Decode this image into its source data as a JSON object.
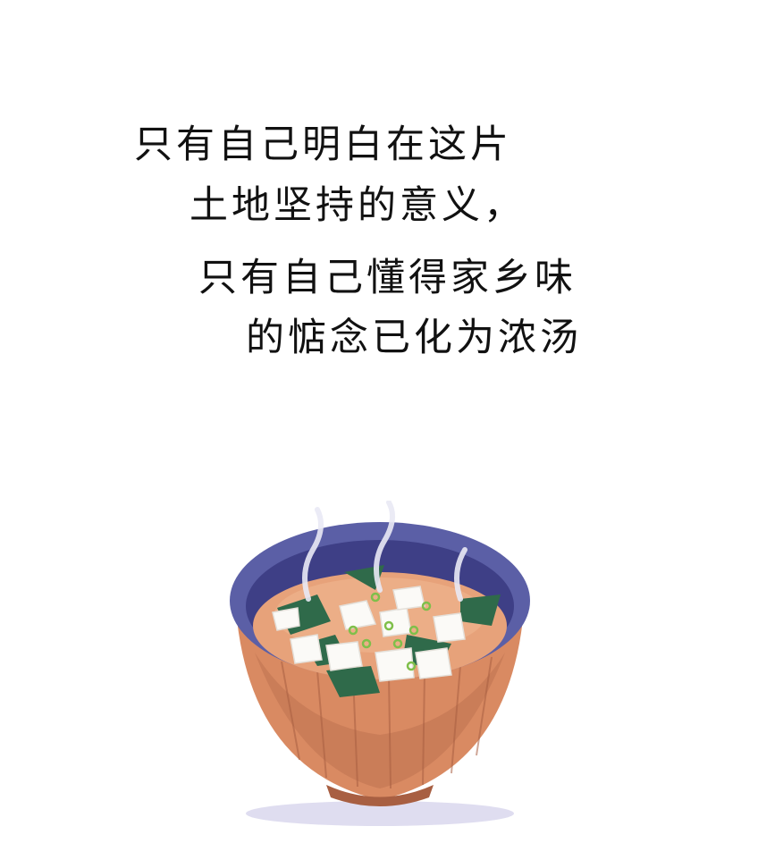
{
  "text": {
    "line1": "只有自己明白在这片",
    "line2": "土地坚持的意义，",
    "line3": "只有自己懂得家乡味",
    "line4": "的惦念已化为浓汤"
  },
  "illustration": {
    "subject": "miso-soup-bowl",
    "colors": {
      "rim": "#5b5fa6",
      "rim_inner": "#3e3f86",
      "broth": "#e7a27a",
      "bowl": "#d98a62",
      "bowl_shadow": "#b86d4e",
      "tofu": "#fbfaf7",
      "seaweed": "#2f6a4a",
      "scallion": "#7fbf4a",
      "shadow": "#c9c7e6"
    }
  }
}
